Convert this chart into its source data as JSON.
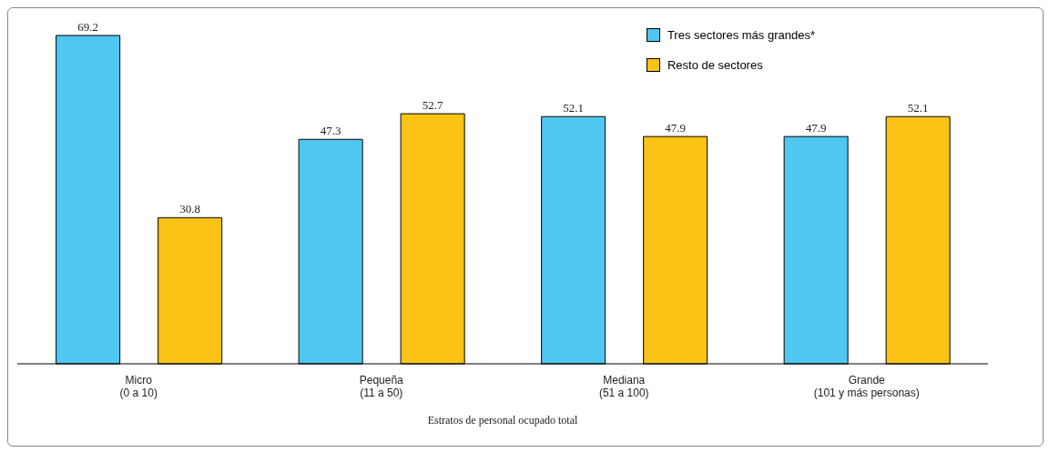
{
  "chart_data": {
    "type": "bar",
    "xlabel": "Estratos de personal ocupado total",
    "categories": [
      "Micro\n(0 a 10)",
      "Pequeña\n(11 a 50)",
      "Mediana\n(51 a 100)",
      "Grande\n(101 y más personas)"
    ],
    "series": [
      {
        "name": "Tres sectores más  grandes*",
        "color": "#4fc7f0",
        "values": [
          69.2,
          47.3,
          52.1,
          47.9
        ]
      },
      {
        "name": "Resto de sectores",
        "color": "#fbc316",
        "values": [
          30.8,
          52.7,
          47.9,
          52.1
        ]
      }
    ],
    "data_labels": true,
    "legend": "top right",
    "grid": false
  }
}
